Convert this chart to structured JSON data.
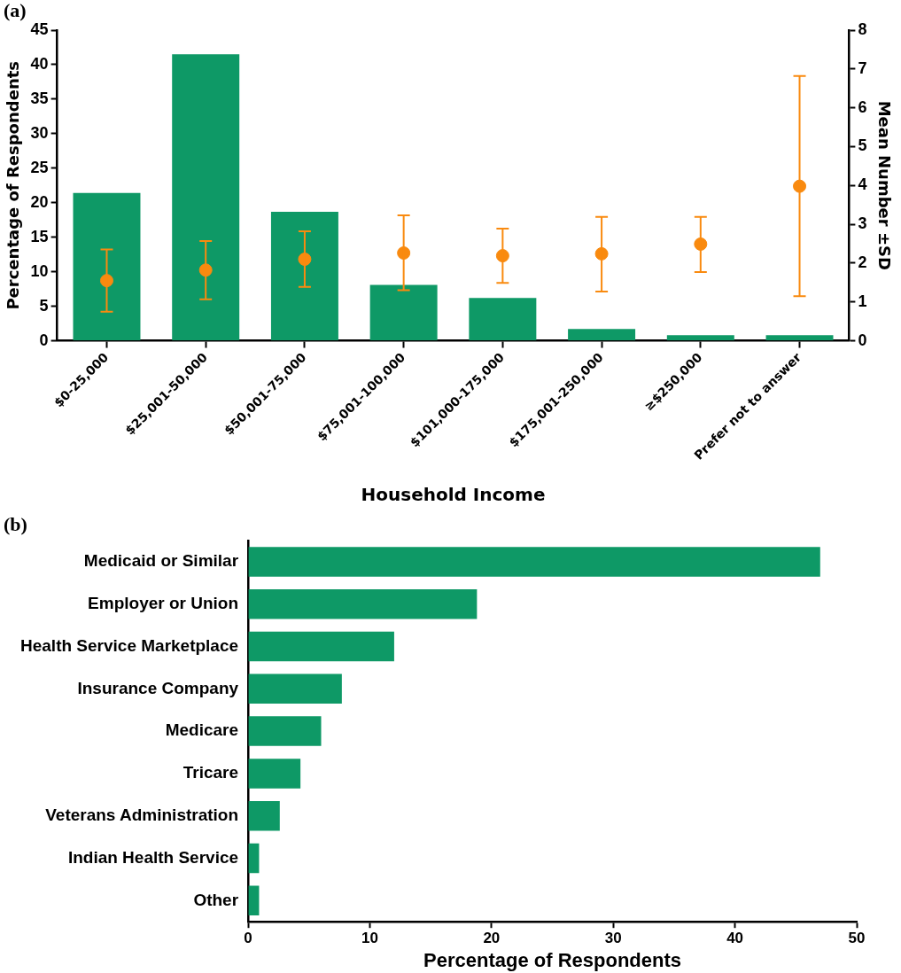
{
  "chart_data": [
    {
      "type": "bar",
      "annotations": [
        "(a)"
      ],
      "xlabel": "Household Income",
      "ylabel": "Percentage of Respondents",
      "y2label": "Mean Number ±SD",
      "categories": [
        "$0-25,000",
        "$25,001-50,000",
        "$50,001-75,000",
        "$75,001-100,000",
        "$101,000-175,000",
        "$175,001-250,000",
        "≥$250,000",
        "Prefer not to answer"
      ],
      "series": [
        {
          "color": "#0e9966",
          "values": [
            21.4,
            41.5,
            18.7,
            8.1,
            6.2,
            1.7,
            0.8,
            0.8
          ]
        },
        {
          "type": "scatter",
          "axis": "y2",
          "color": "#f98a0f",
          "marker": "circle",
          "values": [
            1.55,
            1.82,
            2.1,
            2.26,
            2.19,
            2.24,
            2.49,
            3.98
          ],
          "errors": [
            [
              0.75,
              2.35
            ],
            [
              1.07,
              2.57
            ],
            [
              1.39,
              2.82
            ],
            [
              1.3,
              3.23
            ],
            [
              1.49,
              2.89
            ],
            [
              1.27,
              3.19
            ],
            [
              1.77,
              3.19
            ],
            [
              1.15,
              6.82
            ]
          ]
        }
      ],
      "ylim": [
        0,
        45
      ],
      "yticks": [
        0,
        5,
        10,
        15,
        20,
        25,
        30,
        35,
        40,
        45
      ],
      "y2lim": [
        0,
        8
      ],
      "y2ticks": [
        0,
        1,
        2,
        3,
        4,
        5,
        6,
        7,
        8
      ]
    },
    {
      "type": "bar",
      "orientation": "horizontal",
      "annotations": [
        "(b)"
      ],
      "xlabel": "Percentage of Respondents",
      "categories": [
        "Medicaid or Similar",
        "Employer or Union",
        "Health Service Marketplace",
        "Insurance Company",
        "Medicare",
        "Tricare",
        "Veterans Administration",
        "Indian Health Service",
        "Other"
      ],
      "values": [
        47.0,
        18.8,
        12.0,
        7.7,
        6.0,
        4.3,
        2.6,
        0.9,
        0.9
      ],
      "color": "#0e9966",
      "xlim": [
        0,
        50
      ],
      "xticks": [
        0,
        10,
        20,
        30,
        40,
        50
      ]
    }
  ]
}
